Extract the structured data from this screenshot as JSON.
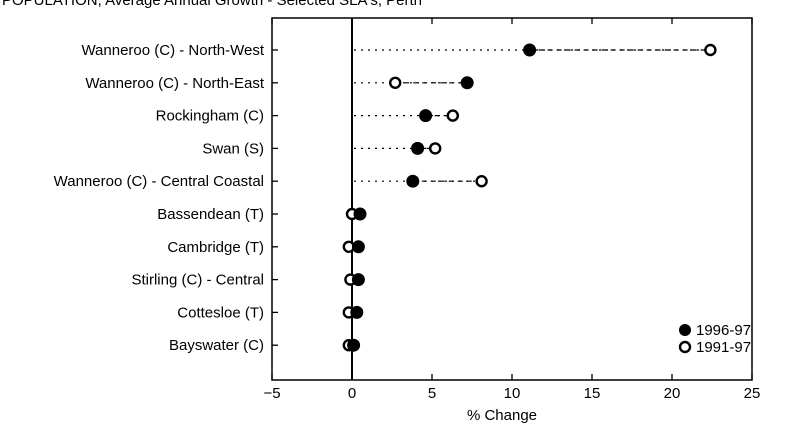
{
  "chart_data": {
    "type": "dot-plot",
    "title": "POPULATION, Average Annual Growth - Selected SLA's, Perth",
    "xlabel": "% Change",
    "ylabel": "",
    "xlim": [
      -5,
      25
    ],
    "xticks": [
      -5,
      0,
      5,
      10,
      15,
      20,
      25
    ],
    "categories": [
      "Wanneroo (C) - North-West",
      "Wanneroo (C) - North-East",
      "Rockingham (C)",
      "Swan (S)",
      "Wanneroo (C) - Central Coastal",
      "Bassendean (T)",
      "Cambridge (T)",
      "Stirling (C) - Central",
      "Cottesloe (T)",
      "Bayswater (C)"
    ],
    "series": [
      {
        "name": "1996-97",
        "marker": "filled",
        "values": [
          11.1,
          7.2,
          4.6,
          4.1,
          3.8,
          0.5,
          0.4,
          0.4,
          0.3,
          0.1
        ]
      },
      {
        "name": "1991-97",
        "marker": "open",
        "values": [
          22.4,
          2.7,
          6.3,
          5.2,
          8.1,
          0.0,
          -0.2,
          -0.1,
          -0.2,
          -0.2
        ]
      }
    ],
    "grid": false,
    "legend_position": "bottom-right"
  }
}
